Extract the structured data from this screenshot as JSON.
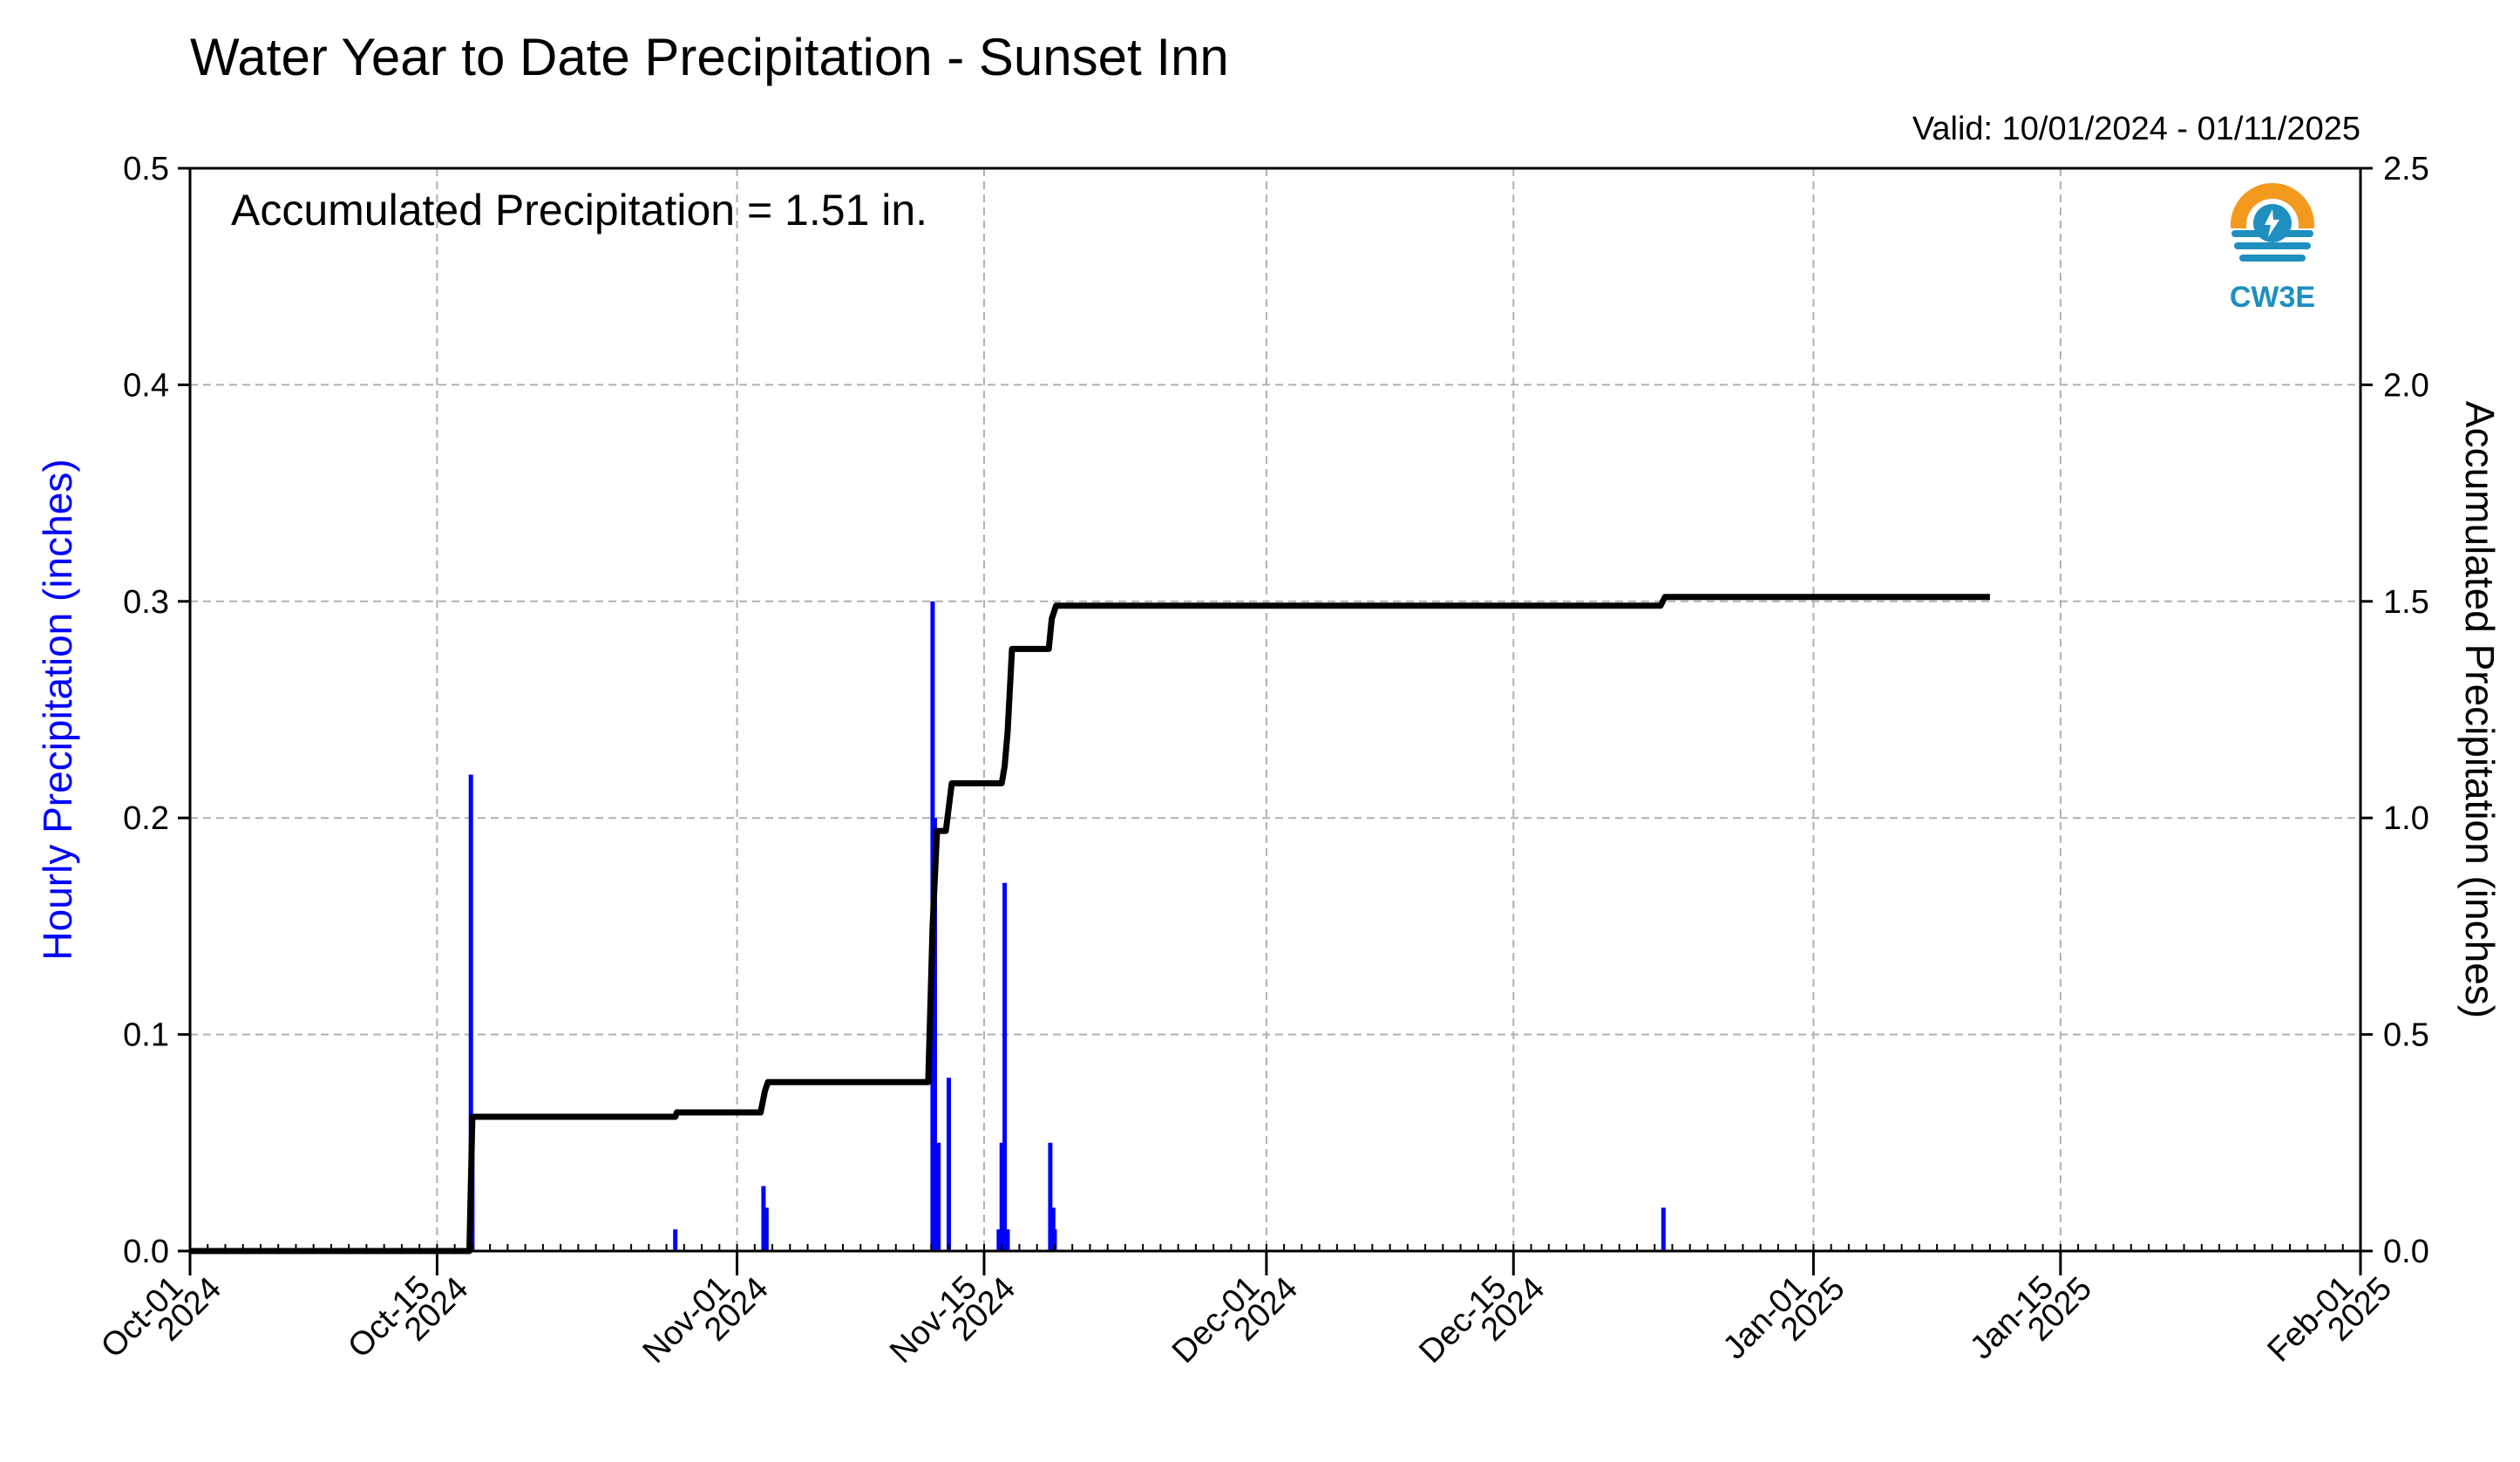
{
  "chart_data": {
    "type": "bar+line",
    "title": "Water Year to Date Precipitation - Sunset Inn",
    "valid_label": "Valid: 10/01/2024 - 01/11/2025",
    "annotation": "Accumulated Precipitation = 1.51 in.",
    "logo_text": "CW3E",
    "y_left": {
      "label": "Hourly Precipitation (inches)",
      "color": "#0000ff",
      "range": [
        0,
        0.5
      ],
      "ticks": [
        "0.0",
        "0.1",
        "0.2",
        "0.3",
        "0.4",
        "0.5"
      ]
    },
    "y_right": {
      "label": "Accumulated Precipitation (inches)",
      "color": "#000000",
      "range": [
        0,
        2.5
      ],
      "ticks": [
        "0.0",
        "0.5",
        "1.0",
        "1.5",
        "2.0",
        "2.5"
      ]
    },
    "x_axis": {
      "range": [
        "2024-10-01",
        "2025-02-01"
      ],
      "ticks": [
        {
          "date": "2024-10-01",
          "line1": "Oct-01",
          "line2": "2024"
        },
        {
          "date": "2024-10-15",
          "line1": "Oct-15",
          "line2": "2024"
        },
        {
          "date": "2024-11-01",
          "line1": "Nov-01",
          "line2": "2024"
        },
        {
          "date": "2024-11-15",
          "line1": "Nov-15",
          "line2": "2024"
        },
        {
          "date": "2024-12-01",
          "line1": "Dec-01",
          "line2": "2024"
        },
        {
          "date": "2024-12-15",
          "line1": "Dec-15",
          "line2": "2024"
        },
        {
          "date": "2025-01-01",
          "line1": "Jan-01",
          "line2": "2025"
        },
        {
          "date": "2025-01-15",
          "line1": "Jan-15",
          "line2": "2025"
        },
        {
          "date": "2025-02-01",
          "line1": "Feb-01",
          "line2": "2025"
        }
      ]
    },
    "grid": true,
    "hourly_series": {
      "name": "Hourly Precipitation",
      "color": "#0000ff",
      "points": [
        {
          "x": "2024-10-16 22:00",
          "y": 0.22
        },
        {
          "x": "2024-10-17 00:00",
          "y": 0.06
        },
        {
          "x": "2024-10-28 12:00",
          "y": 0.01
        },
        {
          "x": "2024-11-02 12:00",
          "y": 0.03
        },
        {
          "x": "2024-11-02 16:00",
          "y": 0.02
        },
        {
          "x": "2024-11-12 02:00",
          "y": 0.3
        },
        {
          "x": "2024-11-12 05:00",
          "y": 0.2
        },
        {
          "x": "2024-11-12 10:00",
          "y": 0.05
        },
        {
          "x": "2024-11-13 00:00",
          "y": 0.08
        },
        {
          "x": "2024-11-15 20:00",
          "y": 0.01
        },
        {
          "x": "2024-11-16 00:00",
          "y": 0.05
        },
        {
          "x": "2024-11-16 04:00",
          "y": 0.17
        },
        {
          "x": "2024-11-16 08:00",
          "y": 0.01
        },
        {
          "x": "2024-11-18 18:00",
          "y": 0.05
        },
        {
          "x": "2024-11-18 22:00",
          "y": 0.02
        },
        {
          "x": "2024-11-19 00:00",
          "y": 0.01
        },
        {
          "x": "2024-12-23 12:00",
          "y": 0.02
        }
      ]
    },
    "accumulated_series": {
      "name": "Accumulated Precipitation",
      "color": "#000000",
      "points": [
        {
          "x": "2024-10-01 00:00",
          "y": 0.0
        },
        {
          "x": "2024-10-16 20:00",
          "y": 0.0
        },
        {
          "x": "2024-10-17 00:00",
          "y": 0.31
        },
        {
          "x": "2024-10-28 12:00",
          "y": 0.31
        },
        {
          "x": "2024-10-28 14:00",
          "y": 0.32
        },
        {
          "x": "2024-11-02 08:00",
          "y": 0.32
        },
        {
          "x": "2024-11-02 14:00",
          "y": 0.37
        },
        {
          "x": "2024-11-02 18:00",
          "y": 0.39
        },
        {
          "x": "2024-11-11 20:00",
          "y": 0.39
        },
        {
          "x": "2024-11-12 02:00",
          "y": 0.75
        },
        {
          "x": "2024-11-12 08:00",
          "y": 0.97
        },
        {
          "x": "2024-11-12 20:00",
          "y": 0.97
        },
        {
          "x": "2024-11-13 04:00",
          "y": 1.08
        },
        {
          "x": "2024-11-16 00:00",
          "y": 1.08
        },
        {
          "x": "2024-11-16 04:00",
          "y": 1.12
        },
        {
          "x": "2024-11-16 08:00",
          "y": 1.2
        },
        {
          "x": "2024-11-16 14:00",
          "y": 1.39
        },
        {
          "x": "2024-11-18 16:00",
          "y": 1.39
        },
        {
          "x": "2024-11-18 20:00",
          "y": 1.46
        },
        {
          "x": "2024-11-19 02:00",
          "y": 1.49
        },
        {
          "x": "2024-12-23 08:00",
          "y": 1.49
        },
        {
          "x": "2024-12-23 14:00",
          "y": 1.51
        },
        {
          "x": "2025-01-11 00:00",
          "y": 1.51
        }
      ]
    }
  }
}
